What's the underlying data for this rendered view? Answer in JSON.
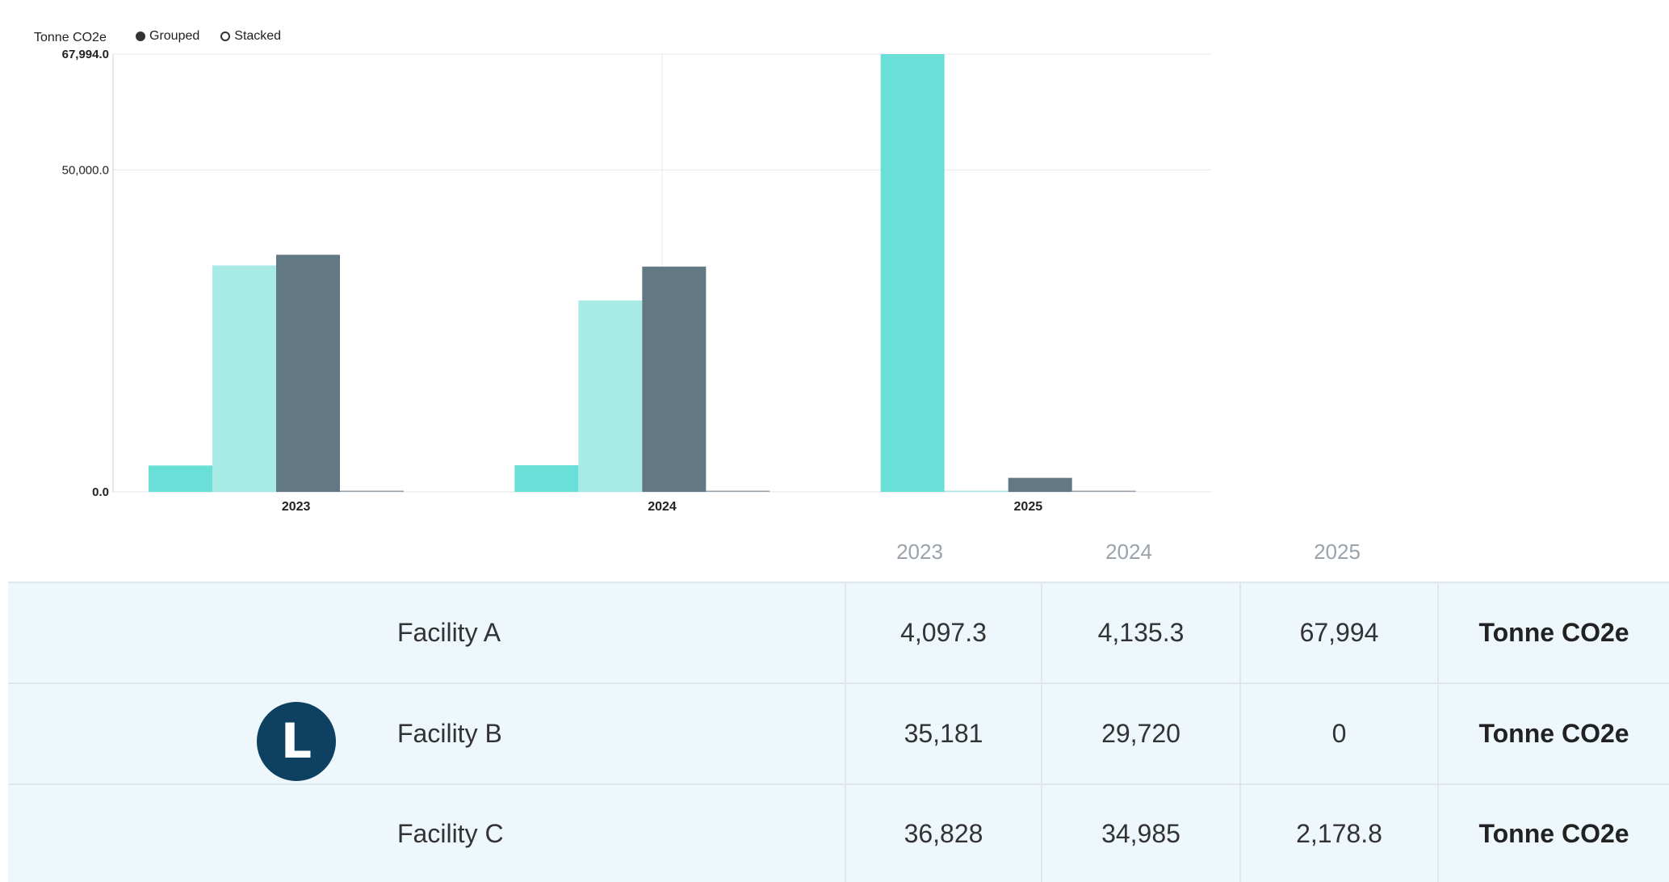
{
  "chart_header": {
    "unit_label": "Tonne CO2e",
    "mode_options": [
      {
        "label": "Grouped",
        "selected": true
      },
      {
        "label": "Stacked",
        "selected": false
      }
    ]
  },
  "chart_data": {
    "type": "bar",
    "mode": "grouped",
    "title": "",
    "xlabel": "",
    "ylabel": "Tonne CO2e",
    "categories": [
      "2023",
      "2024",
      "2025"
    ],
    "ylim": [
      0,
      67994.0
    ],
    "y_ticks": [
      "0.0",
      "50,000.0",
      "67,994.0"
    ],
    "y_tick_values": [
      0,
      50000,
      67994
    ],
    "grid": true,
    "series": [
      {
        "values": [
          4097.3,
          4135.3,
          67994
        ],
        "color": "#6adfd7"
      },
      {
        "values": [
          35181,
          29720,
          0
        ],
        "color": "#a8ebe6"
      },
      {
        "values": [
          36828,
          34985,
          2178.8
        ],
        "color": "#627883"
      },
      {
        "values": [
          0,
          0,
          0
        ],
        "color": "#9aa3ab"
      }
    ]
  },
  "table": {
    "year_headers": [
      "2023",
      "2024",
      "2025"
    ],
    "rows": [
      {
        "name": "Facility A",
        "values": [
          "4,097.3",
          "4,135.3",
          "67,994"
        ],
        "unit": "Tonne CO2e"
      },
      {
        "name": "Facility B",
        "values": [
          "35,181",
          "29,720",
          "0"
        ],
        "unit": "Tonne CO2e"
      },
      {
        "name": "Facility C",
        "values": [
          "36,828",
          "34,985",
          "2,178.8"
        ],
        "unit": "Tonne CO2e"
      }
    ]
  },
  "avatar": {
    "letter": "L"
  }
}
